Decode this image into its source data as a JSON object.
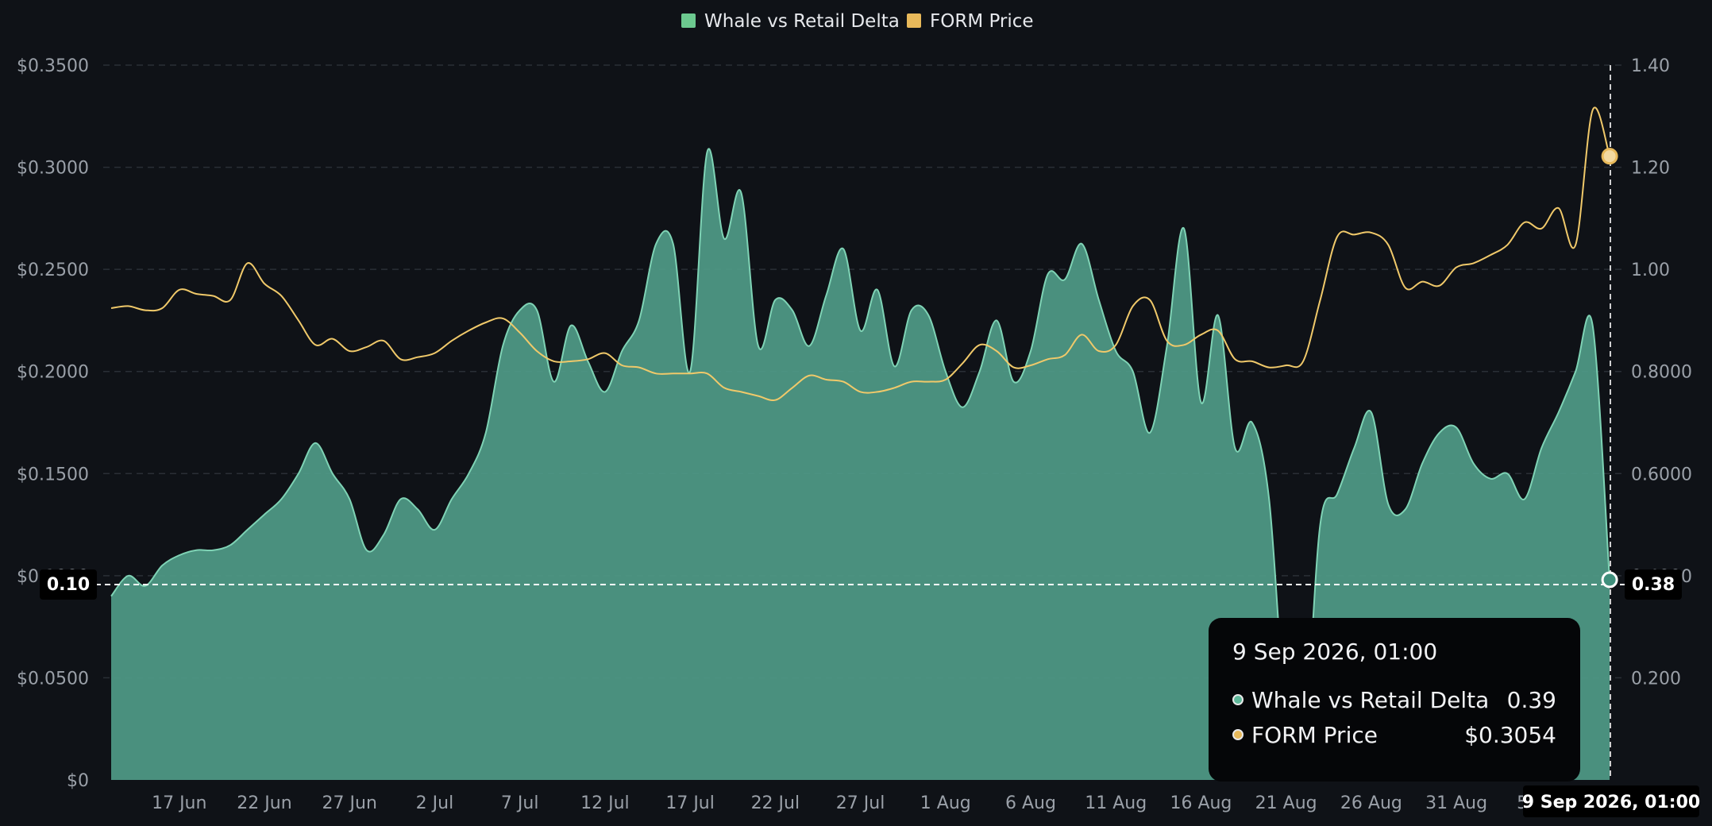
{
  "legend": {
    "items": [
      {
        "label": "Whale vs Retail Delta",
        "color": "#6cc98f"
      },
      {
        "label": "FORM Price",
        "color": "#e8b95a"
      }
    ]
  },
  "crosshair": {
    "y_left_flag": "0.10",
    "y_right_flag": "0.38",
    "x_flag": "9 Sep 2026, 01:00"
  },
  "tooltip": {
    "title": "9 Sep 2026, 01:00",
    "rows": [
      {
        "label": "Whale vs Retail Delta",
        "value": "0.39",
        "color": "#5fb89a"
      },
      {
        "label": "FORM Price",
        "value": "$0.3054",
        "color": "#e8b95a"
      }
    ]
  },
  "colors": {
    "background": "#0f1217",
    "area_fill": "#4f9a86",
    "area_stroke": "#7fd3b5",
    "price_line": "#f0c96a",
    "grid": "#2a2f36"
  },
  "chart_data": {
    "type": "area",
    "x_dates": [
      "17 Jun",
      "22 Jun",
      "27 Jun",
      "2 Jul",
      "7 Jul",
      "12 Jul",
      "17 Jul",
      "22 Jul",
      "27 Jul",
      "1 Aug",
      "6 Aug",
      "11 Aug",
      "16 Aug",
      "21 Aug",
      "26 Aug",
      "31 Aug",
      "5 Sep"
    ],
    "x_range": [
      "2026-06-13",
      "2026-09-09"
    ],
    "y_left": {
      "label": "",
      "ticks": [
        "$0",
        "$0.0500",
        "$0.1000",
        "$0.1500",
        "$0.2000",
        "$0.2500",
        "$0.3000",
        "$0.3500"
      ],
      "range": [
        0,
        0.35
      ]
    },
    "y_right": {
      "label": "",
      "ticks": [
        "0.200",
        "0.4000",
        "0.6000",
        "0.8000",
        "1.00",
        "1.20",
        "1.40"
      ],
      "range": [
        0,
        1.4
      ]
    },
    "grid": true,
    "legend_position": "top-center",
    "series": [
      {
        "name": "Whale vs Retail Delta",
        "axis": "right",
        "style": "area",
        "points": [
          [
            "2026-06-13",
            0.36
          ],
          [
            "2026-06-14",
            0.4
          ],
          [
            "2026-06-15",
            0.38
          ],
          [
            "2026-06-16",
            0.42
          ],
          [
            "2026-06-17",
            0.44
          ],
          [
            "2026-06-18",
            0.45
          ],
          [
            "2026-06-19",
            0.45
          ],
          [
            "2026-06-20",
            0.46
          ],
          [
            "2026-06-21",
            0.49
          ],
          [
            "2026-06-22",
            0.52
          ],
          [
            "2026-06-23",
            0.55
          ],
          [
            "2026-06-24",
            0.6
          ],
          [
            "2026-06-25",
            0.66
          ],
          [
            "2026-06-26",
            0.6
          ],
          [
            "2026-06-27",
            0.55
          ],
          [
            "2026-06-28",
            0.45
          ],
          [
            "2026-06-29",
            0.48
          ],
          [
            "2026-06-30",
            0.55
          ],
          [
            "2026-07-01",
            0.53
          ],
          [
            "2026-07-02",
            0.49
          ],
          [
            "2026-07-03",
            0.55
          ],
          [
            "2026-07-04",
            0.6
          ],
          [
            "2026-07-05",
            0.68
          ],
          [
            "2026-07-06",
            0.85
          ],
          [
            "2026-07-07",
            0.92
          ],
          [
            "2026-07-08",
            0.92
          ],
          [
            "2026-07-09",
            0.78
          ],
          [
            "2026-07-10",
            0.89
          ],
          [
            "2026-07-11",
            0.82
          ],
          [
            "2026-07-12",
            0.76
          ],
          [
            "2026-07-13",
            0.84
          ],
          [
            "2026-07-14",
            0.9
          ],
          [
            "2026-07-15",
            1.05
          ],
          [
            "2026-07-16",
            1.05
          ],
          [
            "2026-07-17",
            0.8
          ],
          [
            "2026-07-18",
            1.23
          ],
          [
            "2026-07-19",
            1.06
          ],
          [
            "2026-07-20",
            1.15
          ],
          [
            "2026-07-21",
            0.85
          ],
          [
            "2026-07-22",
            0.94
          ],
          [
            "2026-07-23",
            0.92
          ],
          [
            "2026-07-24",
            0.85
          ],
          [
            "2026-07-25",
            0.95
          ],
          [
            "2026-07-26",
            1.04
          ],
          [
            "2026-07-27",
            0.88
          ],
          [
            "2026-07-28",
            0.96
          ],
          [
            "2026-07-29",
            0.81
          ],
          [
            "2026-07-30",
            0.92
          ],
          [
            "2026-07-31",
            0.91
          ],
          [
            "2026-08-01",
            0.8
          ],
          [
            "2026-08-02",
            0.73
          ],
          [
            "2026-08-03",
            0.8
          ],
          [
            "2026-08-04",
            0.9
          ],
          [
            "2026-08-05",
            0.78
          ],
          [
            "2026-08-06",
            0.84
          ],
          [
            "2026-08-07",
            0.99
          ],
          [
            "2026-08-08",
            0.98
          ],
          [
            "2026-08-09",
            1.05
          ],
          [
            "2026-08-10",
            0.94
          ],
          [
            "2026-08-11",
            0.84
          ],
          [
            "2026-08-12",
            0.8
          ],
          [
            "2026-08-13",
            0.68
          ],
          [
            "2026-08-14",
            0.85
          ],
          [
            "2026-08-15",
            1.08
          ],
          [
            "2026-08-16",
            0.74
          ],
          [
            "2026-08-17",
            0.91
          ],
          [
            "2026-08-18",
            0.65
          ],
          [
            "2026-08-19",
            0.7
          ],
          [
            "2026-08-20",
            0.55
          ],
          [
            "2026-08-21",
            0.12
          ],
          [
            "2026-08-22",
            0.05
          ],
          [
            "2026-08-23",
            0.5
          ],
          [
            "2026-08-24",
            0.56
          ],
          [
            "2026-08-25",
            0.65
          ],
          [
            "2026-08-26",
            0.72
          ],
          [
            "2026-08-27",
            0.54
          ],
          [
            "2026-08-28",
            0.53
          ],
          [
            "2026-08-29",
            0.62
          ],
          [
            "2026-08-30",
            0.68
          ],
          [
            "2026-08-31",
            0.69
          ],
          [
            "2026-09-01",
            0.62
          ],
          [
            "2026-09-02",
            0.59
          ],
          [
            "2026-09-03",
            0.6
          ],
          [
            "2026-09-04",
            0.55
          ],
          [
            "2026-09-05",
            0.65
          ],
          [
            "2026-09-06",
            0.72
          ],
          [
            "2026-09-07",
            0.8
          ],
          [
            "2026-09-08",
            0.89
          ],
          [
            "2026-09-09",
            0.39
          ]
        ]
      },
      {
        "name": "FORM Price",
        "axis": "left",
        "style": "line",
        "points": [
          [
            "2026-06-13",
            0.231
          ],
          [
            "2026-06-14",
            0.232
          ],
          [
            "2026-06-15",
            0.23
          ],
          [
            "2026-06-16",
            0.231
          ],
          [
            "2026-06-17",
            0.24
          ],
          [
            "2026-06-18",
            0.238
          ],
          [
            "2026-06-19",
            0.237
          ],
          [
            "2026-06-20",
            0.235
          ],
          [
            "2026-06-21",
            0.253
          ],
          [
            "2026-06-22",
            0.243
          ],
          [
            "2026-06-23",
            0.237
          ],
          [
            "2026-06-24",
            0.225
          ],
          [
            "2026-06-25",
            0.213
          ],
          [
            "2026-06-26",
            0.216
          ],
          [
            "2026-06-27",
            0.21
          ],
          [
            "2026-06-28",
            0.212
          ],
          [
            "2026-06-29",
            0.215
          ],
          [
            "2026-06-30",
            0.206
          ],
          [
            "2026-07-01",
            0.207
          ],
          [
            "2026-07-02",
            0.209
          ],
          [
            "2026-07-03",
            0.215
          ],
          [
            "2026-07-04",
            0.22
          ],
          [
            "2026-07-05",
            0.224
          ],
          [
            "2026-07-06",
            0.226
          ],
          [
            "2026-07-07",
            0.219
          ],
          [
            "2026-07-08",
            0.21
          ],
          [
            "2026-07-09",
            0.205
          ],
          [
            "2026-07-10",
            0.205
          ],
          [
            "2026-07-11",
            0.206
          ],
          [
            "2026-07-12",
            0.209
          ],
          [
            "2026-07-13",
            0.203
          ],
          [
            "2026-07-14",
            0.202
          ],
          [
            "2026-07-15",
            0.199
          ],
          [
            "2026-07-16",
            0.199
          ],
          [
            "2026-07-17",
            0.199
          ],
          [
            "2026-07-18",
            0.199
          ],
          [
            "2026-07-19",
            0.192
          ],
          [
            "2026-07-20",
            0.19
          ],
          [
            "2026-07-21",
            0.188
          ],
          [
            "2026-07-22",
            0.186
          ],
          [
            "2026-07-23",
            0.192
          ],
          [
            "2026-07-24",
            0.198
          ],
          [
            "2026-07-25",
            0.196
          ],
          [
            "2026-07-26",
            0.195
          ],
          [
            "2026-07-27",
            0.19
          ],
          [
            "2026-07-28",
            0.19
          ],
          [
            "2026-07-29",
            0.192
          ],
          [
            "2026-07-30",
            0.195
          ],
          [
            "2026-07-31",
            0.195
          ],
          [
            "2026-08-01",
            0.196
          ],
          [
            "2026-08-02",
            0.204
          ],
          [
            "2026-08-03",
            0.213
          ],
          [
            "2026-08-04",
            0.21
          ],
          [
            "2026-08-05",
            0.202
          ],
          [
            "2026-08-06",
            0.203
          ],
          [
            "2026-08-07",
            0.206
          ],
          [
            "2026-08-08",
            0.208
          ],
          [
            "2026-08-09",
            0.218
          ],
          [
            "2026-08-10",
            0.21
          ],
          [
            "2026-08-11",
            0.213
          ],
          [
            "2026-08-12",
            0.232
          ],
          [
            "2026-08-13",
            0.235
          ],
          [
            "2026-08-14",
            0.215
          ],
          [
            "2026-08-15",
            0.213
          ],
          [
            "2026-08-16",
            0.218
          ],
          [
            "2026-08-17",
            0.22
          ],
          [
            "2026-08-18",
            0.206
          ],
          [
            "2026-08-19",
            0.205
          ],
          [
            "2026-08-20",
            0.202
          ],
          [
            "2026-08-21",
            0.203
          ],
          [
            "2026-08-22",
            0.205
          ],
          [
            "2026-08-23",
            0.235
          ],
          [
            "2026-08-24",
            0.266
          ],
          [
            "2026-08-25",
            0.267
          ],
          [
            "2026-08-26",
            0.268
          ],
          [
            "2026-08-27",
            0.262
          ],
          [
            "2026-08-28",
            0.241
          ],
          [
            "2026-08-29",
            0.244
          ],
          [
            "2026-08-30",
            0.242
          ],
          [
            "2026-08-31",
            0.251
          ],
          [
            "2026-09-01",
            0.253
          ],
          [
            "2026-09-02",
            0.257
          ],
          [
            "2026-09-03",
            0.262
          ],
          [
            "2026-09-04",
            0.273
          ],
          [
            "2026-09-05",
            0.27
          ],
          [
            "2026-09-06",
            0.28
          ],
          [
            "2026-09-07",
            0.262
          ],
          [
            "2026-09-08",
            0.328
          ],
          [
            "2026-09-09",
            0.3054
          ]
        ]
      }
    ]
  }
}
